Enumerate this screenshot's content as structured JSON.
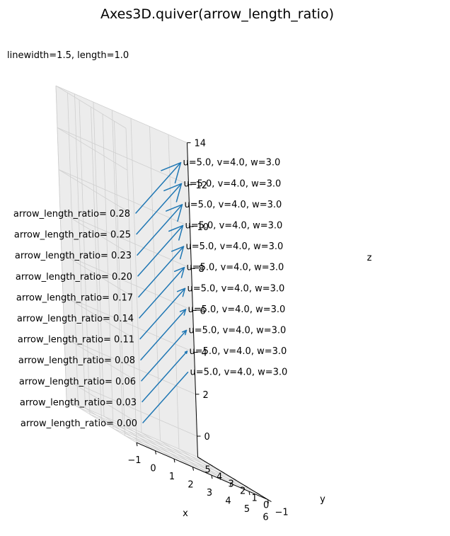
{
  "chart_data": {
    "type": "quiver3d",
    "title": "Axes3D.quiver(arrow_length_ratio)",
    "subtitle": "linewidth=1.5, length=1.0",
    "xlabel": "x",
    "ylabel": "y",
    "zlabel": "z",
    "xlim": [
      -1,
      6
    ],
    "ylim": [
      -1,
      5
    ],
    "zlim": [
      -1,
      14
    ],
    "xticks": [
      "−1",
      "0",
      "1",
      "2",
      "3",
      "4",
      "5",
      "6"
    ],
    "yticks": [
      "−1",
      "0",
      "1",
      "2",
      "3",
      "4",
      "5"
    ],
    "zticks": [
      "0",
      "2",
      "4",
      "6",
      "8",
      "10",
      "12",
      "14"
    ],
    "grid": true,
    "color": "#1f77b4",
    "arrows": [
      {
        "x": 0,
        "y": 0,
        "z": 0,
        "u": 5.0,
        "v": 4.0,
        "w": 3.0,
        "arrow_length_ratio": 0.0,
        "left_label": "arrow_length_ratio= 0.00",
        "right_label": "u=5.0, v=4.0, w=3.0"
      },
      {
        "x": 0,
        "y": 0,
        "z": 1,
        "u": 5.0,
        "v": 4.0,
        "w": 3.0,
        "arrow_length_ratio": 0.03,
        "left_label": "arrow_length_ratio= 0.03",
        "right_label": "u=5.0, v=4.0, w=3.0"
      },
      {
        "x": 0,
        "y": 0,
        "z": 2,
        "u": 5.0,
        "v": 4.0,
        "w": 3.0,
        "arrow_length_ratio": 0.06,
        "left_label": "arrow_length_ratio= 0.06",
        "right_label": "u=5.0, v=4.0, w=3.0"
      },
      {
        "x": 0,
        "y": 0,
        "z": 3,
        "u": 5.0,
        "v": 4.0,
        "w": 3.0,
        "arrow_length_ratio": 0.08,
        "left_label": "arrow_length_ratio= 0.08",
        "right_label": "u=5.0, v=4.0, w=3.0"
      },
      {
        "x": 0,
        "y": 0,
        "z": 4,
        "u": 5.0,
        "v": 4.0,
        "w": 3.0,
        "arrow_length_ratio": 0.11,
        "left_label": "arrow_length_ratio= 0.11",
        "right_label": "u=5.0, v=4.0, w=3.0"
      },
      {
        "x": 0,
        "y": 0,
        "z": 5,
        "u": 5.0,
        "v": 4.0,
        "w": 3.0,
        "arrow_length_ratio": 0.14,
        "left_label": "arrow_length_ratio= 0.14",
        "right_label": "u=5.0, v=4.0, w=3.0"
      },
      {
        "x": 0,
        "y": 0,
        "z": 6,
        "u": 5.0,
        "v": 4.0,
        "w": 3.0,
        "arrow_length_ratio": 0.17,
        "left_label": "arrow_length_ratio= 0.17",
        "right_label": "u=5.0, v=4.0, w=3.0"
      },
      {
        "x": 0,
        "y": 0,
        "z": 7,
        "u": 5.0,
        "v": 4.0,
        "w": 3.0,
        "arrow_length_ratio": 0.2,
        "left_label": "arrow_length_ratio= 0.20",
        "right_label": "u=5.0, v=4.0, w=3.0"
      },
      {
        "x": 0,
        "y": 0,
        "z": 8,
        "u": 5.0,
        "v": 4.0,
        "w": 3.0,
        "arrow_length_ratio": 0.23,
        "left_label": "arrow_length_ratio= 0.23",
        "right_label": "u=5.0, v=4.0, w=3.0"
      },
      {
        "x": 0,
        "y": 0,
        "z": 9,
        "u": 5.0,
        "v": 4.0,
        "w": 3.0,
        "arrow_length_ratio": 0.25,
        "left_label": "arrow_length_ratio= 0.25",
        "right_label": "u=5.0, v=4.0, w=3.0"
      },
      {
        "x": 0,
        "y": 0,
        "z": 10,
        "u": 5.0,
        "v": 4.0,
        "w": 3.0,
        "arrow_length_ratio": 0.28,
        "left_label": "arrow_length_ratio= 0.28",
        "right_label": "u=5.0, v=4.0, w=3.0"
      }
    ]
  }
}
